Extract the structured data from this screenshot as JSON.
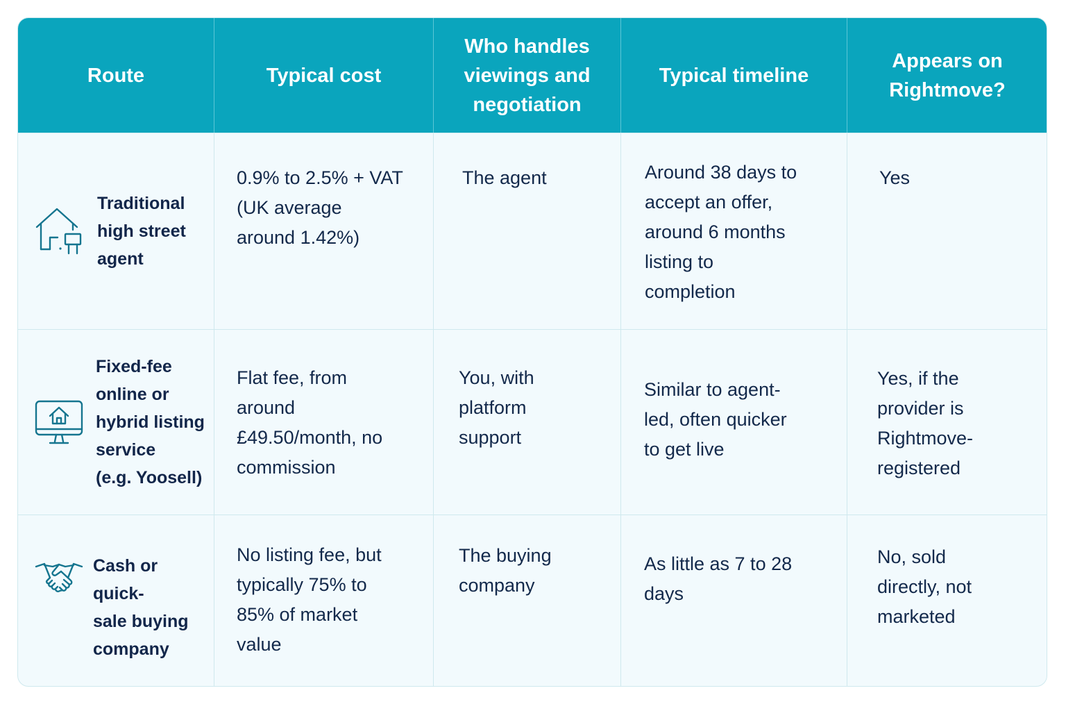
{
  "headers": [
    "Route",
    "Typical cost",
    "Who handles\nviewings and\nnegotiation",
    "Typical timeline",
    "Appears on\nRightmove?"
  ],
  "rows": [
    {
      "route": "Traditional\nhigh street\nagent",
      "route_icon": "house-with-sign-icon",
      "cost": "0.9% to 2.5% + VAT\n(UK average\naround 1.42%)",
      "who": "The agent",
      "timeline": "Around 38 days to\naccept an offer,\naround 6 months\nlisting to\ncompletion",
      "rightmove": "Yes"
    },
    {
      "route": "Fixed-fee\nonline or\nhybrid listing\nservice\n(e.g. Yoosell)",
      "route_icon": "monitor-house-icon",
      "cost": "Flat fee, from\naround\n£49.50/month, no\ncommission",
      "who": "You, with\nplatform\nsupport",
      "timeline": "Similar to agent-\nled, often quicker\nto get live",
      "rightmove": "Yes, if the\nprovider is\nRightmove-\nregistered"
    },
    {
      "route": "Cash or quick-\nsale buying\ncompany",
      "route_icon": "handshake-icon",
      "cost": "No listing fee, but\ntypically 75% to\n85% of market\nvalue",
      "who": "The buying\ncompany",
      "timeline": "As little as 7 to 28\ndays",
      "rightmove": "No, sold\ndirectly, not\nmarketed"
    }
  ],
  "colors": {
    "header_bg": "#0aa5bd",
    "body_bg": "#f2fafd",
    "border": "#cfe9ee",
    "text": "#13294b",
    "icon": "#15758f"
  }
}
